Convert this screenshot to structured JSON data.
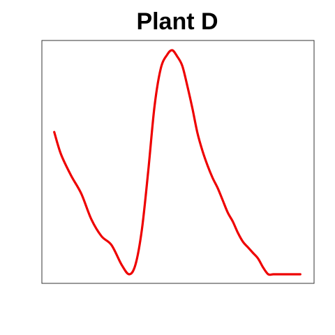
{
  "chart_data": {
    "type": "line",
    "title": "Plant D",
    "xlabel": "",
    "ylabel": "",
    "xlim": [
      0,
      1
    ],
    "ylim": [
      0,
      1
    ],
    "axes_visible": false,
    "grid": false,
    "legend": "none",
    "series": [
      {
        "color": "#ee0000",
        "x": [
          0.013,
          0.04,
          0.08,
          0.12,
          0.16,
          0.2,
          0.24,
          0.28,
          0.31,
          0.335,
          0.36,
          0.385,
          0.41,
          0.435,
          0.46,
          0.48,
          0.5,
          0.52,
          0.54,
          0.56,
          0.58,
          0.6,
          0.62,
          0.64,
          0.66,
          0.68,
          0.7,
          0.72,
          0.74,
          0.76,
          0.78,
          0.8,
          0.82,
          0.84,
          0.86,
          0.88,
          0.9,
          0.92,
          0.94,
          0.96,
          0.98,
          0.987
        ],
        "y": [
          0.635,
          0.535,
          0.44,
          0.36,
          0.245,
          0.17,
          0.13,
          0.042,
          0.0,
          0.045,
          0.2,
          0.46,
          0.75,
          0.92,
          0.98,
          1.0,
          0.972,
          0.93,
          0.84,
          0.74,
          0.63,
          0.55,
          0.485,
          0.43,
          0.385,
          0.33,
          0.275,
          0.235,
          0.185,
          0.145,
          0.12,
          0.095,
          0.07,
          0.03,
          0.0,
          0.0,
          0.0,
          0.0,
          0.0,
          0.0,
          0.0,
          0.0
        ]
      }
    ]
  }
}
